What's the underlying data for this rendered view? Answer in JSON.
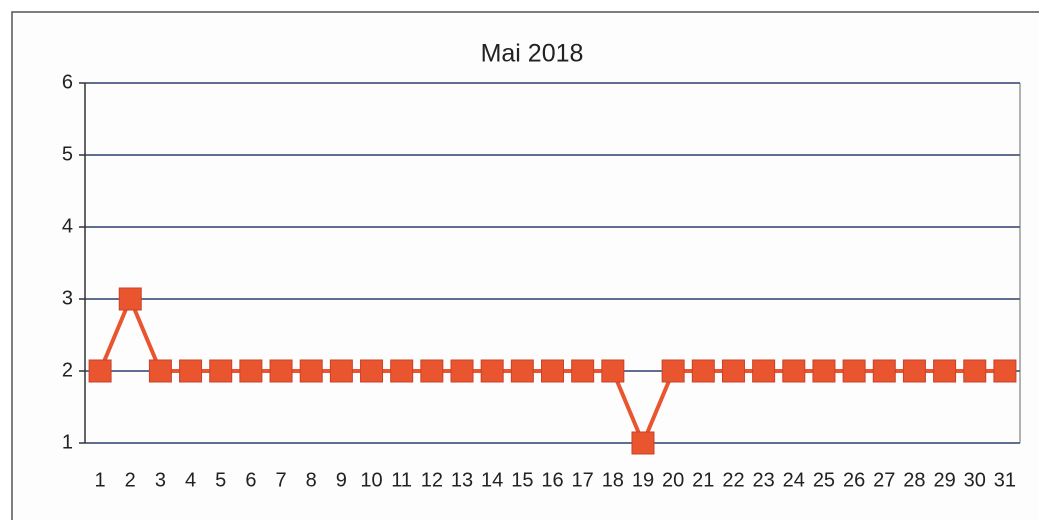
{
  "chart_data": {
    "type": "line",
    "title": "Mai 2018",
    "categories": [
      "1",
      "2",
      "3",
      "4",
      "5",
      "6",
      "7",
      "8",
      "9",
      "10",
      "11",
      "12",
      "13",
      "14",
      "15",
      "16",
      "17",
      "18",
      "19",
      "20",
      "21",
      "22",
      "23",
      "24",
      "25",
      "26",
      "27",
      "28",
      "29",
      "30",
      "31"
    ],
    "values": [
      2,
      3,
      2,
      2,
      2,
      2,
      2,
      2,
      2,
      2,
      2,
      2,
      2,
      2,
      2,
      2,
      2,
      2,
      1,
      2,
      2,
      2,
      2,
      2,
      2,
      2,
      2,
      2,
      2,
      2,
      2
    ],
    "color": "#e8552f",
    "ylim": [
      1,
      6
    ],
    "yticks": [
      1,
      2,
      3,
      4,
      5,
      6
    ],
    "grid": true
  }
}
